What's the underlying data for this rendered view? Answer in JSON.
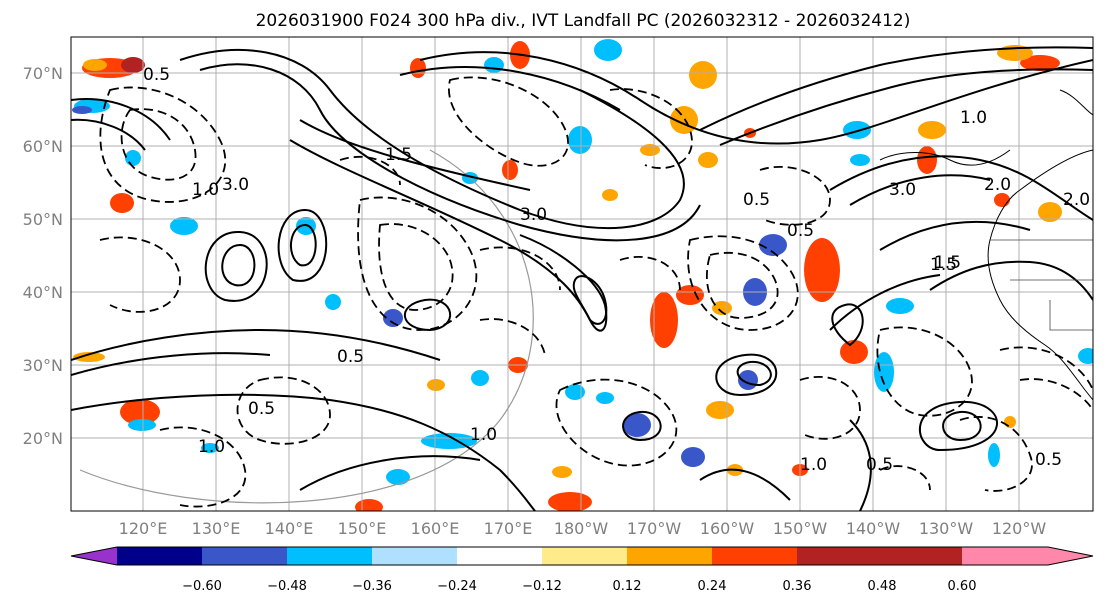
{
  "title": "2026031900 F024 300 hPa div., IVT Landfall PC (2026032312 - 2026032412)",
  "map": {
    "lat_labels": [
      "70°N",
      "60°N",
      "50°N",
      "40°N",
      "30°N",
      "20°N"
    ],
    "lon_labels": [
      "120°E",
      "130°E",
      "140°E",
      "150°E",
      "160°E",
      "170°E",
      "180°W",
      "170°W",
      "160°W",
      "150°W",
      "140°W",
      "130°W",
      "120°W"
    ],
    "contour_labels": [
      "0.5",
      "1.0",
      "1.5",
      "2.0",
      "3.0",
      "0.5",
      "1.0",
      "3.0",
      "0.5",
      "1.5",
      "1.0",
      "0.5",
      "3.0",
      "1.0",
      "0.5",
      "1.0",
      "0.5",
      "2.0",
      "1.5",
      "0.5"
    ]
  },
  "colorbar": {
    "ticks": [
      "−0.60",
      "−0.48",
      "−0.36",
      "−0.24",
      "−0.12",
      "0.12",
      "0.24",
      "0.36",
      "0.48",
      "0.60"
    ],
    "colors": [
      "#9932cc",
      "#00008b",
      "#3a57c9",
      "#00bfff",
      "#b0e0ff",
      "#ffffff",
      "#ffeb8a",
      "#ffa500",
      "#ff4000",
      "#b22222",
      "#ff88aa"
    ]
  }
}
